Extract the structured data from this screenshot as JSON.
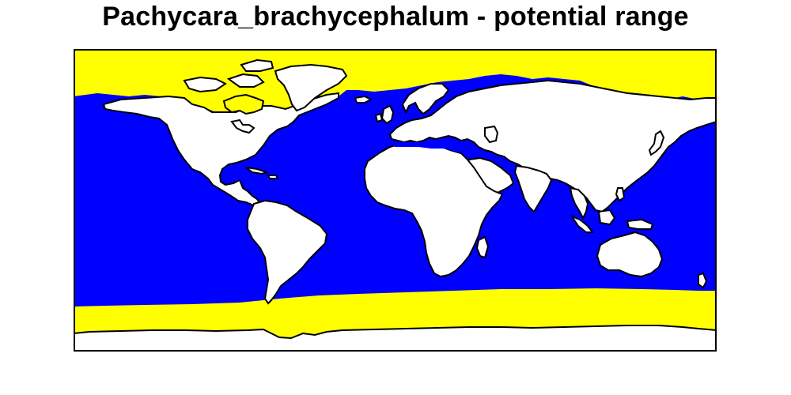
{
  "title": "Pachycara_brachycephalum - potential range",
  "legend_colors": {
    "potential_range_color": "#ffff00",
    "ocean_outside_range_color": "#0000ff",
    "land_color": "#ffffff",
    "outline_color": "#000000"
  },
  "map": {
    "projection": "equirectangular world map",
    "extent": {
      "lon": [
        -180,
        180
      ],
      "lat": [
        -90,
        90
      ]
    }
  }
}
